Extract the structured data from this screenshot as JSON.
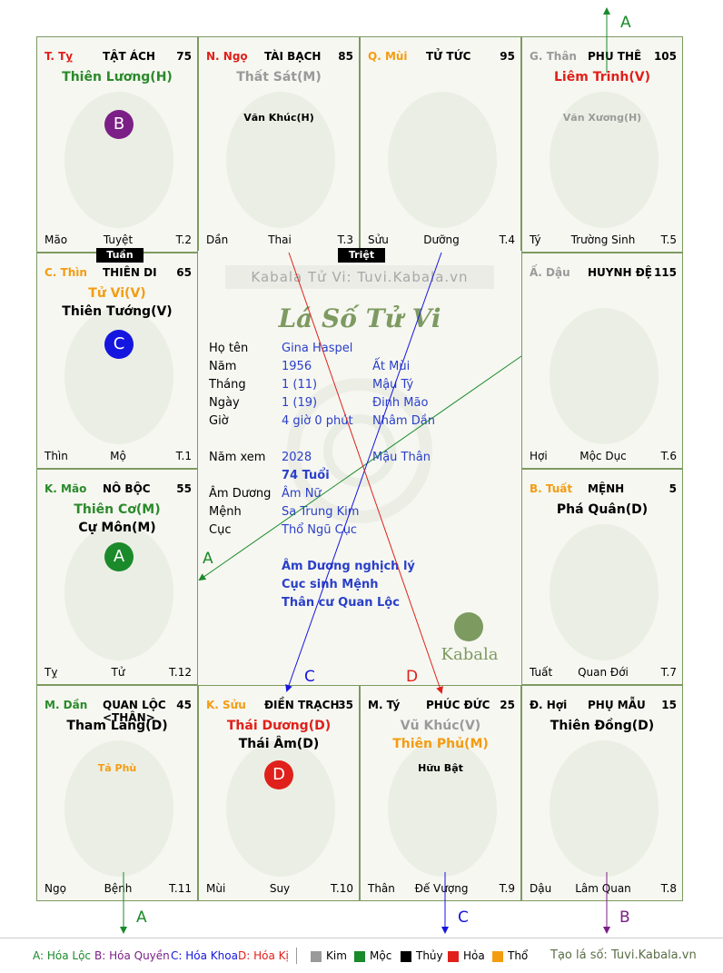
{
  "palaces": {
    "ty": {
      "can": "T. Tỵ",
      "can_color": "#e0201b",
      "name": "TẬT ÁCH",
      "num": "75",
      "stars": [
        {
          "t": "Thiên Lương(H)",
          "c": "#2a8a2a"
        }
      ],
      "minor": [],
      "ftr": [
        "Mão",
        "Tuyệt",
        "T.2"
      ],
      "badge": "B",
      "badge_color": "#7b1f86"
    },
    "ngo": {
      "can": "N. Ngọ",
      "can_color": "#e0201b",
      "name": "TÀI BẠCH",
      "num": "85",
      "stars": [
        {
          "t": "Thất Sát(M)",
          "c": "#9a9a9a"
        }
      ],
      "minor": [
        {
          "t": "Văn Khúc(H)",
          "c": "#000"
        }
      ],
      "ftr": [
        "Dần",
        "Thai",
        "T.3"
      ]
    },
    "mui": {
      "can": "Q. Mùi",
      "can_color": "#f39c12",
      "name": "TỬ TỨC",
      "num": "95",
      "stars": [],
      "minor": [],
      "ftr": [
        "Sửu",
        "Dưỡng",
        "T.4"
      ]
    },
    "than": {
      "can": "G. Thân",
      "can_color": "#9a9a9a",
      "name": "PHU THÊ",
      "num": "105",
      "stars": [
        {
          "t": "Liêm Trinh(V)",
          "c": "#e0201b"
        }
      ],
      "minor": [
        {
          "t": "Văn Xương(H)",
          "c": "#9a9a9a"
        }
      ],
      "ftr": [
        "Tý",
        "Trường Sinh",
        "T.5"
      ]
    },
    "thin": {
      "can": "C. Thìn",
      "can_color": "#f39c12",
      "name": "THIÊN DI",
      "num": "65",
      "stars": [
        {
          "t": "Tử Vi(V)",
          "c": "#f39c12"
        },
        {
          "t": "Thiên Tướng(V)",
          "c": "#000"
        }
      ],
      "minor": [],
      "ftr": [
        "Thìn",
        "Mộ",
        "T.1"
      ],
      "badge": "C",
      "badge_color": "#1515e0"
    },
    "dau": {
      "can": "Ấ. Dậu",
      "can_color": "#9a9a9a",
      "name": "HUYNH ĐỆ",
      "num": "115",
      "stars": [],
      "minor": [],
      "ftr": [
        "Hợi",
        "Mộc Dục",
        "T.6"
      ]
    },
    "mao": {
      "can": "K. Mão",
      "can_color": "#2a8a2a",
      "name": "NÔ BỘC",
      "num": "55",
      "stars": [
        {
          "t": "Thiên Cơ(M)",
          "c": "#2a8a2a"
        },
        {
          "t": "Cự Môn(M)",
          "c": "#000"
        }
      ],
      "minor": [],
      "ftr": [
        "Tỵ",
        "Tử",
        "T.12"
      ],
      "badge": "A",
      "badge_color": "#1a8a2a"
    },
    "tuat": {
      "can": "B. Tuất",
      "can_color": "#f39c12",
      "name": "MỆNH",
      "num": "5",
      "stars": [
        {
          "t": "Phá Quân(D)",
          "c": "#000"
        }
      ],
      "minor": [],
      "ftr": [
        "Tuất",
        "Quan Đới",
        "T.7"
      ]
    },
    "dan": {
      "can": "M. Dần",
      "can_color": "#2a8a2a",
      "name": "QUAN LỘC <THÂN>",
      "num": "45",
      "stars": [
        {
          "t": "Tham Lang(D)",
          "c": "#000"
        }
      ],
      "minor": [
        {
          "t": "Tả Phù",
          "c": "#f39c12"
        }
      ],
      "ftr": [
        "Ngọ",
        "Bệnh",
        "T.11"
      ]
    },
    "suu": {
      "can": "K. Sửu",
      "can_color": "#f39c12",
      "name": "ĐIỀN TRẠCH",
      "num": "35",
      "stars": [
        {
          "t": "Thái Dương(D)",
          "c": "#e0201b"
        },
        {
          "t": "Thái Âm(D)",
          "c": "#000"
        }
      ],
      "minor": [],
      "ftr": [
        "Mùi",
        "Suy",
        "T.10"
      ],
      "badge": "D",
      "badge_color": "#e0201b"
    },
    "tyy": {
      "can": "M. Tý",
      "can_color": "#000",
      "name": "PHÚC ĐỨC",
      "num": "25",
      "stars": [
        {
          "t": "Vũ Khúc(V)",
          "c": "#9a9a9a"
        },
        {
          "t": "Thiên Phủ(M)",
          "c": "#f39c12"
        }
      ],
      "minor": [
        {
          "t": "Hữu Bật",
          "c": "#000"
        }
      ],
      "ftr": [
        "Thân",
        "Đế Vượng",
        "T.9"
      ]
    },
    "hoi": {
      "can": "Đ. Hợi",
      "can_color": "#000",
      "name": "PHỤ MẪU",
      "num": "15",
      "stars": [
        {
          "t": "Thiên Đồng(D)",
          "c": "#000"
        }
      ],
      "minor": [],
      "ftr": [
        "Dậu",
        "Lâm Quan",
        "T.8"
      ]
    }
  },
  "tags": {
    "tuan": "Tuần",
    "triet": "Triệt"
  },
  "center": {
    "watermark": "Kabala Tử Vi: Tuvi.Kabala.vn",
    "title": "Lá Số Tử Vi",
    "rows": [
      {
        "l": "Họ tên",
        "v1": "Gina Haspel",
        "v2": ""
      },
      {
        "l": "Năm",
        "v1": "1956",
        "v2": "Ất Mùi"
      },
      {
        "l": "Tháng",
        "v1": "1  (11)",
        "v2": "Mậu Tý"
      },
      {
        "l": "Ngày",
        "v1": "1  (19)",
        "v2": "Đinh Mão"
      },
      {
        "l": "Giờ",
        "v1": "4 giờ 0 phút",
        "v2": "Nhâm Dần"
      }
    ],
    "namxem": {
      "l": "Năm xem",
      "v1": "2028",
      "v2": "Mậu Thân"
    },
    "tuoi": "74 Tuổi",
    "rows2": [
      {
        "l": "Âm Dương",
        "v1": "Âm Nữ"
      },
      {
        "l": "Mệnh",
        "v1": "Sa Trung Kim"
      },
      {
        "l": "Cục",
        "v1": "Thổ Ngũ Cục"
      }
    ],
    "notes": [
      "Âm Dương nghịch lý",
      "Cục sinh Mệnh",
      "Thân cư Quan Lộc"
    ],
    "logo": "Kabala"
  },
  "arrows": {
    "a": "A",
    "b": "B",
    "c": "C",
    "d": "D"
  },
  "legend": {
    "a": "A: Hóa Lộc",
    "b": "B: Hóa Quyền",
    "c": "C: Hóa Khoa",
    "d": "D: Hóa Kị",
    "kim": "Kim",
    "moc": "Mộc",
    "thuy": "Thủy",
    "hoa": "Hỏa",
    "tho": "Thổ",
    "site": "Tạo lá số: Tuvi.Kabala.vn"
  },
  "colors": {
    "green": "#1a8a2a",
    "purple": "#7b1f86",
    "blue": "#1515e0",
    "red": "#e0201b",
    "kim": "#9a9a9a",
    "moc": "#1a8a2a",
    "thuy": "#000000",
    "hoa": "#e0201b",
    "tho": "#f39c12"
  }
}
